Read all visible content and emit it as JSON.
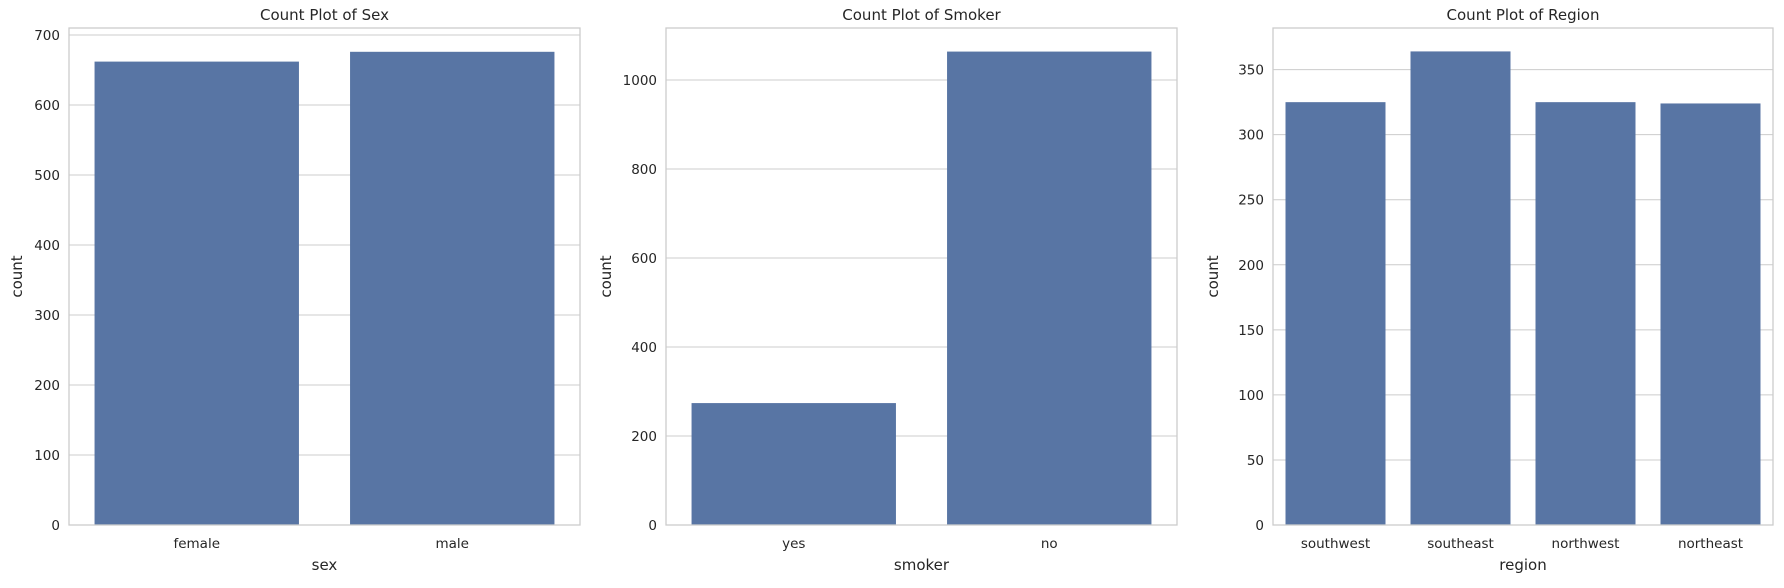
{
  "chart_data": [
    {
      "type": "bar",
      "title": "Count Plot of Sex",
      "xlabel": "sex",
      "ylabel": "count",
      "categories": [
        "female",
        "male"
      ],
      "values": [
        662,
        676
      ],
      "ylim": [
        0,
        710
      ],
      "yticks": [
        0,
        100,
        200,
        300,
        400,
        500,
        600,
        700
      ],
      "grid": true
    },
    {
      "type": "bar",
      "title": "Count Plot of Smoker",
      "xlabel": "smoker",
      "ylabel": "count",
      "categories": [
        "yes",
        "no"
      ],
      "values": [
        274,
        1064
      ],
      "ylim": [
        0,
        1117
      ],
      "yticks": [
        0,
        200,
        400,
        600,
        800,
        1000
      ],
      "grid": true
    },
    {
      "type": "bar",
      "title": "Count Plot of Region",
      "xlabel": "region",
      "ylabel": "count",
      "categories": [
        "southwest",
        "southeast",
        "northwest",
        "northeast"
      ],
      "values": [
        325,
        364,
        325,
        324
      ],
      "ylim": [
        0,
        382
      ],
      "yticks": [
        0,
        50,
        100,
        150,
        200,
        250,
        300,
        350
      ],
      "grid": true
    }
  ],
  "colors": {
    "bar": "#5875a4",
    "grid": "#cccccc",
    "frame": "#cccccc",
    "text": "#262626"
  }
}
